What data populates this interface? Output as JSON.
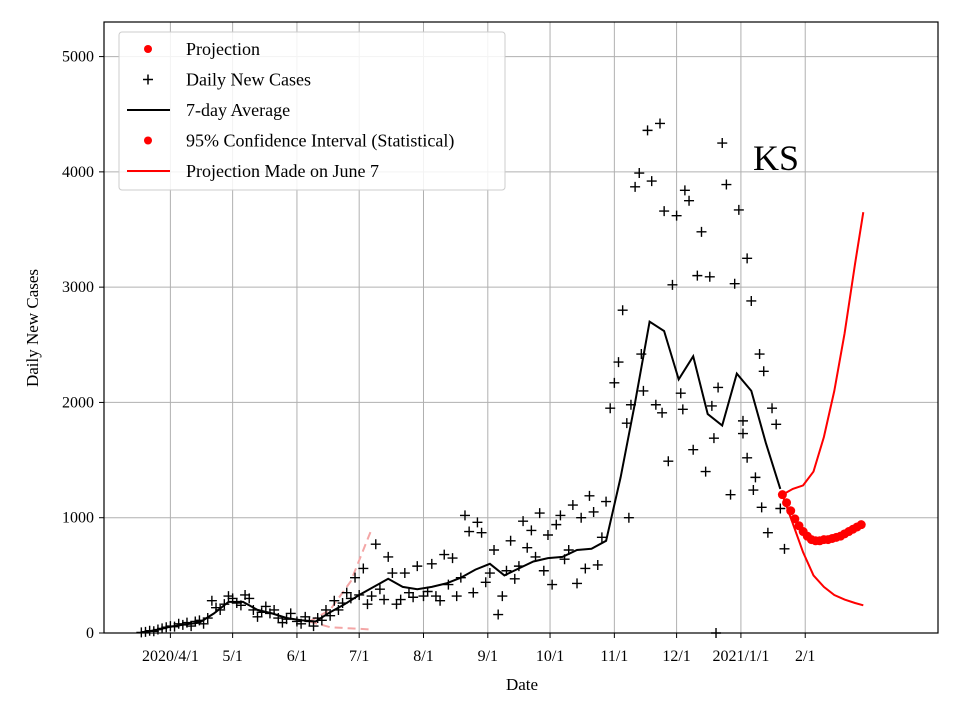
{
  "chart_data": {
    "type": "scatter",
    "title": "",
    "xlabel": "Date",
    "ylabel": "Daily New Cases",
    "annotation": "KS",
    "grid": true,
    "legend_placement": "top-left",
    "xlim": [
      "2020-02-29",
      "2021-04-06"
    ],
    "ylim": [
      0,
      5300
    ],
    "x_ticks": [
      {
        "date": "2020-04-01",
        "label": "2020/4/1"
      },
      {
        "date": "2020-05-01",
        "label": "5/1"
      },
      {
        "date": "2020-06-01",
        "label": "6/1"
      },
      {
        "date": "2020-07-01",
        "label": "7/1"
      },
      {
        "date": "2020-08-01",
        "label": "8/1"
      },
      {
        "date": "2020-09-01",
        "label": "9/1"
      },
      {
        "date": "2020-10-01",
        "label": "10/1"
      },
      {
        "date": "2020-11-01",
        "label": "11/1"
      },
      {
        "date": "2020-12-01",
        "label": "12/1"
      },
      {
        "date": "2021-01-01",
        "label": "2021/1/1"
      },
      {
        "date": "2021-02-01",
        "label": "2/1"
      }
    ],
    "y_ticks": [
      0,
      1000,
      2000,
      3000,
      4000,
      5000
    ],
    "legend": [
      {
        "label": "Projection",
        "marker": "dot",
        "color": "#ff0000"
      },
      {
        "label": "Daily New Cases",
        "marker": "plus",
        "color": "#000000"
      },
      {
        "label": "7-day Average",
        "marker": "line",
        "color": "#000000"
      },
      {
        "label": "95% Confidence Interval (Statistical)",
        "marker": "dot",
        "color": "#ff0000"
      },
      {
        "label": "Projection Made on June 7",
        "marker": "line",
        "color": "#ff0000"
      }
    ],
    "colors": {
      "projection": "#ff0000",
      "cases": "#000000",
      "average": "#000000",
      "june7": "#f4a6a6"
    },
    "series": [
      {
        "name": "Daily New Cases",
        "style": "plus",
        "points": [
          [
            "2020-03-18",
            5
          ],
          [
            "2020-03-20",
            10
          ],
          [
            "2020-03-22",
            20
          ],
          [
            "2020-03-24",
            15
          ],
          [
            "2020-03-26",
            30
          ],
          [
            "2020-03-28",
            40
          ],
          [
            "2020-03-30",
            50
          ],
          [
            "2020-04-01",
            60
          ],
          [
            "2020-04-03",
            55
          ],
          [
            "2020-04-05",
            80
          ],
          [
            "2020-04-07",
            70
          ],
          [
            "2020-04-09",
            90
          ],
          [
            "2020-04-11",
            60
          ],
          [
            "2020-04-13",
            100
          ],
          [
            "2020-04-15",
            110
          ],
          [
            "2020-04-17",
            80
          ],
          [
            "2020-04-19",
            130
          ],
          [
            "2020-04-21",
            280
          ],
          [
            "2020-04-23",
            220
          ],
          [
            "2020-04-25",
            200
          ],
          [
            "2020-04-27",
            250
          ],
          [
            "2020-04-29",
            320
          ],
          [
            "2020-05-01",
            300
          ],
          [
            "2020-05-03",
            260
          ],
          [
            "2020-05-05",
            240
          ],
          [
            "2020-05-07",
            330
          ],
          [
            "2020-05-09",
            300
          ],
          [
            "2020-05-11",
            200
          ],
          [
            "2020-05-13",
            140
          ],
          [
            "2020-05-15",
            180
          ],
          [
            "2020-05-17",
            230
          ],
          [
            "2020-05-19",
            170
          ],
          [
            "2020-05-21",
            200
          ],
          [
            "2020-05-23",
            130
          ],
          [
            "2020-05-25",
            90
          ],
          [
            "2020-05-27",
            120
          ],
          [
            "2020-05-29",
            170
          ],
          [
            "2020-06-01",
            100
          ],
          [
            "2020-06-03",
            80
          ],
          [
            "2020-06-05",
            140
          ],
          [
            "2020-06-07",
            100
          ],
          [
            "2020-06-09",
            60
          ],
          [
            "2020-06-11",
            130
          ],
          [
            "2020-06-13",
            110
          ],
          [
            "2020-06-15",
            200
          ],
          [
            "2020-06-17",
            150
          ],
          [
            "2020-06-19",
            280
          ],
          [
            "2020-06-21",
            200
          ],
          [
            "2020-06-23",
            260
          ],
          [
            "2020-06-25",
            350
          ],
          [
            "2020-06-27",
            300
          ],
          [
            "2020-06-29",
            480
          ],
          [
            "2020-07-01",
            330
          ],
          [
            "2020-07-03",
            560
          ],
          [
            "2020-07-05",
            250
          ],
          [
            "2020-07-07",
            320
          ],
          [
            "2020-07-09",
            770
          ],
          [
            "2020-07-11",
            380
          ],
          [
            "2020-07-13",
            290
          ],
          [
            "2020-07-15",
            660
          ],
          [
            "2020-07-17",
            520
          ],
          [
            "2020-07-19",
            250
          ],
          [
            "2020-07-21",
            290
          ],
          [
            "2020-07-23",
            520
          ],
          [
            "2020-07-25",
            350
          ],
          [
            "2020-07-27",
            310
          ],
          [
            "2020-07-29",
            580
          ],
          [
            "2020-08-01",
            320
          ],
          [
            "2020-08-03",
            360
          ],
          [
            "2020-08-05",
            600
          ],
          [
            "2020-08-07",
            320
          ],
          [
            "2020-08-09",
            280
          ],
          [
            "2020-08-11",
            680
          ],
          [
            "2020-08-13",
            420
          ],
          [
            "2020-08-15",
            650
          ],
          [
            "2020-08-17",
            320
          ],
          [
            "2020-08-19",
            480
          ],
          [
            "2020-08-21",
            1020
          ],
          [
            "2020-08-23",
            880
          ],
          [
            "2020-08-25",
            350
          ],
          [
            "2020-08-27",
            960
          ],
          [
            "2020-08-29",
            870
          ],
          [
            "2020-08-31",
            440
          ],
          [
            "2020-09-02",
            520
          ],
          [
            "2020-09-04",
            720
          ],
          [
            "2020-09-06",
            160
          ],
          [
            "2020-09-08",
            320
          ],
          [
            "2020-09-10",
            540
          ],
          [
            "2020-09-12",
            800
          ],
          [
            "2020-09-14",
            470
          ],
          [
            "2020-09-16",
            580
          ],
          [
            "2020-09-18",
            970
          ],
          [
            "2020-09-20",
            740
          ],
          [
            "2020-09-22",
            890
          ],
          [
            "2020-09-24",
            660
          ],
          [
            "2020-09-26",
            1040
          ],
          [
            "2020-09-28",
            540
          ],
          [
            "2020-09-30",
            850
          ],
          [
            "2020-10-02",
            420
          ],
          [
            "2020-10-04",
            940
          ],
          [
            "2020-10-06",
            1020
          ],
          [
            "2020-10-08",
            640
          ],
          [
            "2020-10-10",
            720
          ],
          [
            "2020-10-12",
            1110
          ],
          [
            "2020-10-14",
            430
          ],
          [
            "2020-10-16",
            1000
          ],
          [
            "2020-10-18",
            560
          ],
          [
            "2020-10-20",
            1190
          ],
          [
            "2020-10-22",
            1050
          ],
          [
            "2020-10-24",
            590
          ],
          [
            "2020-10-26",
            830
          ],
          [
            "2020-10-28",
            1140
          ],
          [
            "2020-10-30",
            1950
          ],
          [
            "2020-11-01",
            2170
          ],
          [
            "2020-11-03",
            2350
          ],
          [
            "2020-11-05",
            2800
          ],
          [
            "2020-11-07",
            1820
          ],
          [
            "2020-11-09",
            1980
          ],
          [
            "2020-11-11",
            3870
          ],
          [
            "2020-11-13",
            3990
          ],
          [
            "2020-11-15",
            2100
          ],
          [
            "2020-11-17",
            4360
          ],
          [
            "2020-11-19",
            3920
          ],
          [
            "2020-11-21",
            1980
          ],
          [
            "2020-11-23",
            4420
          ],
          [
            "2020-11-25",
            3660
          ],
          [
            "2020-11-27",
            1490
          ],
          [
            "2020-11-29",
            3020
          ],
          [
            "2020-12-01",
            3620
          ],
          [
            "2020-12-03",
            2080
          ],
          [
            "2020-12-05",
            3840
          ],
          [
            "2020-12-07",
            3750
          ],
          [
            "2020-12-09",
            1590
          ],
          [
            "2020-12-11",
            3100
          ],
          [
            "2020-12-13",
            3480
          ],
          [
            "2020-12-15",
            1400
          ],
          [
            "2020-12-17",
            3090
          ],
          [
            "2020-12-19",
            1690
          ],
          [
            "2020-12-21",
            2130
          ],
          [
            "2020-12-23",
            4250
          ],
          [
            "2020-12-25",
            3890
          ],
          [
            "2020-12-27",
            1200
          ],
          [
            "2020-12-29",
            3030
          ],
          [
            "2020-12-31",
            3670
          ],
          [
            "2021-01-02",
            1730
          ],
          [
            "2021-01-04",
            3250
          ],
          [
            "2021-01-06",
            2880
          ],
          [
            "2021-01-08",
            1350
          ],
          [
            "2021-01-10",
            2420
          ],
          [
            "2021-01-12",
            2270
          ],
          [
            "2021-01-14",
            870
          ],
          [
            "2021-01-16",
            1950
          ],
          [
            "2021-01-18",
            1810
          ],
          [
            "2021-01-20",
            1080
          ],
          [
            "2021-01-22",
            730
          ],
          [
            "2020-12-20",
            0
          ],
          [
            "2020-11-08",
            1000
          ],
          [
            "2020-11-14",
            2420
          ],
          [
            "2020-11-24",
            1910
          ],
          [
            "2020-12-04",
            1940
          ],
          [
            "2020-12-18",
            1970
          ],
          [
            "2021-01-02",
            1840
          ],
          [
            "2021-01-04",
            1520
          ],
          [
            "2021-01-07",
            1240
          ],
          [
            "2021-01-11",
            1090
          ]
        ]
      },
      {
        "name": "7-day Average",
        "style": "line",
        "points": [
          [
            "2020-03-18",
            5
          ],
          [
            "2020-03-25",
            25
          ],
          [
            "2020-04-01",
            55
          ],
          [
            "2020-04-08",
            75
          ],
          [
            "2020-04-15",
            90
          ],
          [
            "2020-04-22",
            170
          ],
          [
            "2020-04-29",
            270
          ],
          [
            "2020-05-06",
            270
          ],
          [
            "2020-05-13",
            200
          ],
          [
            "2020-05-20",
            170
          ],
          [
            "2020-05-27",
            130
          ],
          [
            "2020-06-03",
            110
          ],
          [
            "2020-06-10",
            100
          ],
          [
            "2020-06-17",
            180
          ],
          [
            "2020-06-24",
            250
          ],
          [
            "2020-07-01",
            330
          ],
          [
            "2020-07-08",
            400
          ],
          [
            "2020-07-15",
            470
          ],
          [
            "2020-07-22",
            400
          ],
          [
            "2020-07-29",
            380
          ],
          [
            "2020-08-05",
            400
          ],
          [
            "2020-08-12",
            430
          ],
          [
            "2020-08-19",
            480
          ],
          [
            "2020-08-26",
            550
          ],
          [
            "2020-09-02",
            600
          ],
          [
            "2020-09-09",
            500
          ],
          [
            "2020-09-16",
            560
          ],
          [
            "2020-09-23",
            620
          ],
          [
            "2020-09-30",
            650
          ],
          [
            "2020-10-07",
            660
          ],
          [
            "2020-10-14",
            720
          ],
          [
            "2020-10-21",
            730
          ],
          [
            "2020-10-28",
            800
          ],
          [
            "2020-11-04",
            1350
          ],
          [
            "2020-11-11",
            2000
          ],
          [
            "2020-11-18",
            2700
          ],
          [
            "2020-11-25",
            2620
          ],
          [
            "2020-12-02",
            2200
          ],
          [
            "2020-12-09",
            2400
          ],
          [
            "2020-12-16",
            1900
          ],
          [
            "2020-12-23",
            1800
          ],
          [
            "2020-12-30",
            2250
          ],
          [
            "2021-01-06",
            2100
          ],
          [
            "2021-01-13",
            1650
          ],
          [
            "2021-01-20",
            1250
          ]
        ]
      },
      {
        "name": "Projection",
        "style": "dots",
        "points": [
          [
            "2021-01-21",
            1200
          ],
          [
            "2021-01-23",
            1130
          ],
          [
            "2021-01-25",
            1060
          ],
          [
            "2021-01-27",
            990
          ],
          [
            "2021-01-29",
            930
          ],
          [
            "2021-01-31",
            880
          ],
          [
            "2021-02-02",
            840
          ],
          [
            "2021-02-04",
            810
          ],
          [
            "2021-02-06",
            800
          ],
          [
            "2021-02-08",
            800
          ],
          [
            "2021-02-10",
            810
          ],
          [
            "2021-02-12",
            810
          ],
          [
            "2021-02-14",
            820
          ],
          [
            "2021-02-16",
            830
          ],
          [
            "2021-02-18",
            840
          ],
          [
            "2021-02-20",
            860
          ],
          [
            "2021-02-22",
            880
          ],
          [
            "2021-02-24",
            900
          ],
          [
            "2021-02-26",
            920
          ],
          [
            "2021-02-28",
            940
          ]
        ]
      },
      {
        "name": "95% CI upper",
        "style": "line",
        "points": [
          [
            "2021-01-21",
            1200
          ],
          [
            "2021-01-26",
            1250
          ],
          [
            "2021-01-31",
            1280
          ],
          [
            "2021-02-05",
            1400
          ],
          [
            "2021-02-10",
            1700
          ],
          [
            "2021-02-15",
            2100
          ],
          [
            "2021-02-20",
            2600
          ],
          [
            "2021-02-25",
            3200
          ],
          [
            "2021-03-01",
            3650
          ]
        ]
      },
      {
        "name": "95% CI lower",
        "style": "line",
        "points": [
          [
            "2021-01-21",
            1200
          ],
          [
            "2021-01-26",
            950
          ],
          [
            "2021-01-31",
            700
          ],
          [
            "2021-02-05",
            500
          ],
          [
            "2021-02-10",
            400
          ],
          [
            "2021-02-15",
            330
          ],
          [
            "2021-02-20",
            290
          ],
          [
            "2021-02-25",
            260
          ],
          [
            "2021-03-01",
            240
          ]
        ]
      },
      {
        "name": "Projection Made on June 7 upper",
        "style": "dashed",
        "points": [
          [
            "2020-06-07",
            100
          ],
          [
            "2020-06-17",
            200
          ],
          [
            "2020-06-27",
            450
          ],
          [
            "2020-07-07",
            900
          ]
        ]
      },
      {
        "name": "Projection Made on June 7 lower",
        "style": "dashed",
        "points": [
          [
            "2020-06-07",
            100
          ],
          [
            "2020-06-17",
            50
          ],
          [
            "2020-06-27",
            40
          ],
          [
            "2020-07-07",
            30
          ]
        ]
      }
    ]
  }
}
